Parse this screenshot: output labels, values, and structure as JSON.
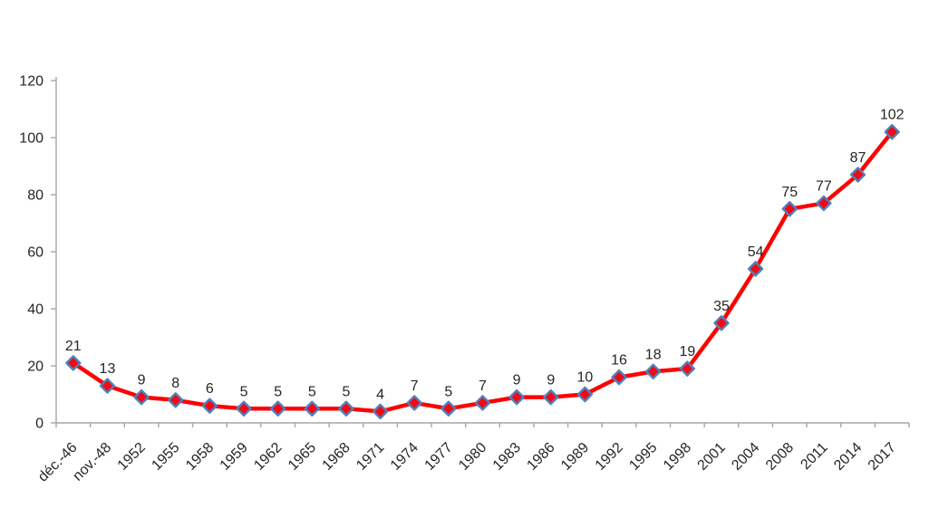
{
  "chart_data": {
    "type": "line",
    "title": "",
    "xlabel": "",
    "ylabel": "",
    "categories": [
      "déc.-46",
      "nov.-48",
      "1952",
      "1955",
      "1958",
      "1959",
      "1962",
      "1965",
      "1968",
      "1971",
      "1974",
      "1977",
      "1980",
      "1983",
      "1986",
      "1989",
      "1992",
      "1995",
      "1998",
      "2001",
      "2004",
      "2008",
      "2011",
      "2014",
      "2017"
    ],
    "values": [
      21,
      13,
      9,
      8,
      6,
      5,
      5,
      5,
      5,
      4,
      7,
      5,
      7,
      9,
      9,
      10,
      16,
      18,
      19,
      35,
      54,
      75,
      77,
      87,
      102
    ],
    "data_labels": [
      21,
      13,
      9,
      8,
      6,
      5,
      5,
      5,
      5,
      4,
      7,
      5,
      7,
      9,
      9,
      10,
      16,
      18,
      19,
      35,
      54,
      75,
      77,
      87,
      102
    ],
    "ylim": [
      0,
      120
    ],
    "yticks": [
      0,
      20,
      40,
      60,
      80,
      100,
      120
    ],
    "grid": false,
    "legend": "none",
    "data_labels_visible": true,
    "marker_shape": "diamond",
    "x_label_rotation": -45,
    "colors": {
      "line": "#ff0000",
      "marker_fill": "#f00a14",
      "marker_border": "#4f81bd",
      "axis": "#a6a6a6",
      "text": "#262626",
      "background": "#ffffff"
    }
  }
}
